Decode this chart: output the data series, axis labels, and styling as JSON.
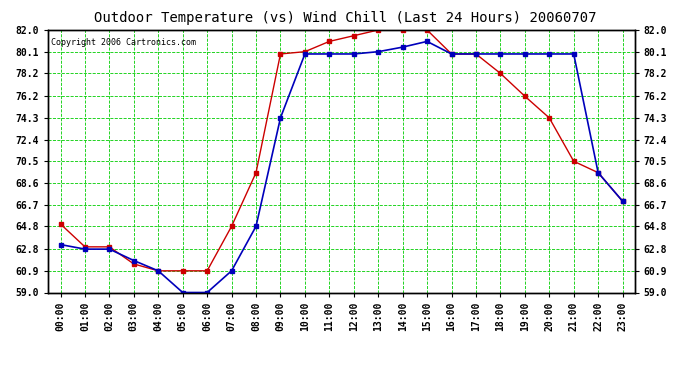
{
  "title": "Outdoor Temperature (vs) Wind Chill (Last 24 Hours) 20060707",
  "copyright": "Copyright 2006 Cartronics.com",
  "x_labels": [
    "00:00",
    "01:00",
    "02:00",
    "03:00",
    "04:00",
    "05:00",
    "06:00",
    "07:00",
    "08:00",
    "09:00",
    "10:00",
    "11:00",
    "12:00",
    "13:00",
    "14:00",
    "15:00",
    "16:00",
    "17:00",
    "18:00",
    "19:00",
    "20:00",
    "21:00",
    "22:00",
    "23:00"
  ],
  "temp_red": [
    65.0,
    63.0,
    63.0,
    61.5,
    60.9,
    60.9,
    60.9,
    64.8,
    69.5,
    79.9,
    80.1,
    81.0,
    81.5,
    82.0,
    82.0,
    82.0,
    79.9,
    79.9,
    78.2,
    76.2,
    74.3,
    70.5,
    69.5,
    67.0
  ],
  "wind_blue": [
    63.2,
    62.8,
    62.8,
    61.8,
    60.9,
    59.0,
    59.0,
    60.9,
    64.8,
    74.3,
    79.9,
    79.9,
    79.9,
    80.1,
    80.5,
    81.0,
    79.9,
    79.9,
    79.9,
    79.9,
    79.9,
    79.9,
    69.5,
    67.0
  ],
  "ylim_min": 59.0,
  "ylim_max": 82.0,
  "yticks": [
    59.0,
    60.9,
    62.8,
    64.8,
    66.7,
    68.6,
    70.5,
    72.4,
    74.3,
    76.2,
    78.2,
    80.1,
    82.0
  ],
  "bg_color": "#ffffff",
  "plot_bg": "#ffffff",
  "grid_color_major": "#00cc00",
  "grid_color_minor": "#00cc00",
  "red_color": "#cc0000",
  "blue_color": "#0000bb",
  "title_fontsize": 10,
  "tick_fontsize": 7,
  "copyright_fontsize": 6
}
